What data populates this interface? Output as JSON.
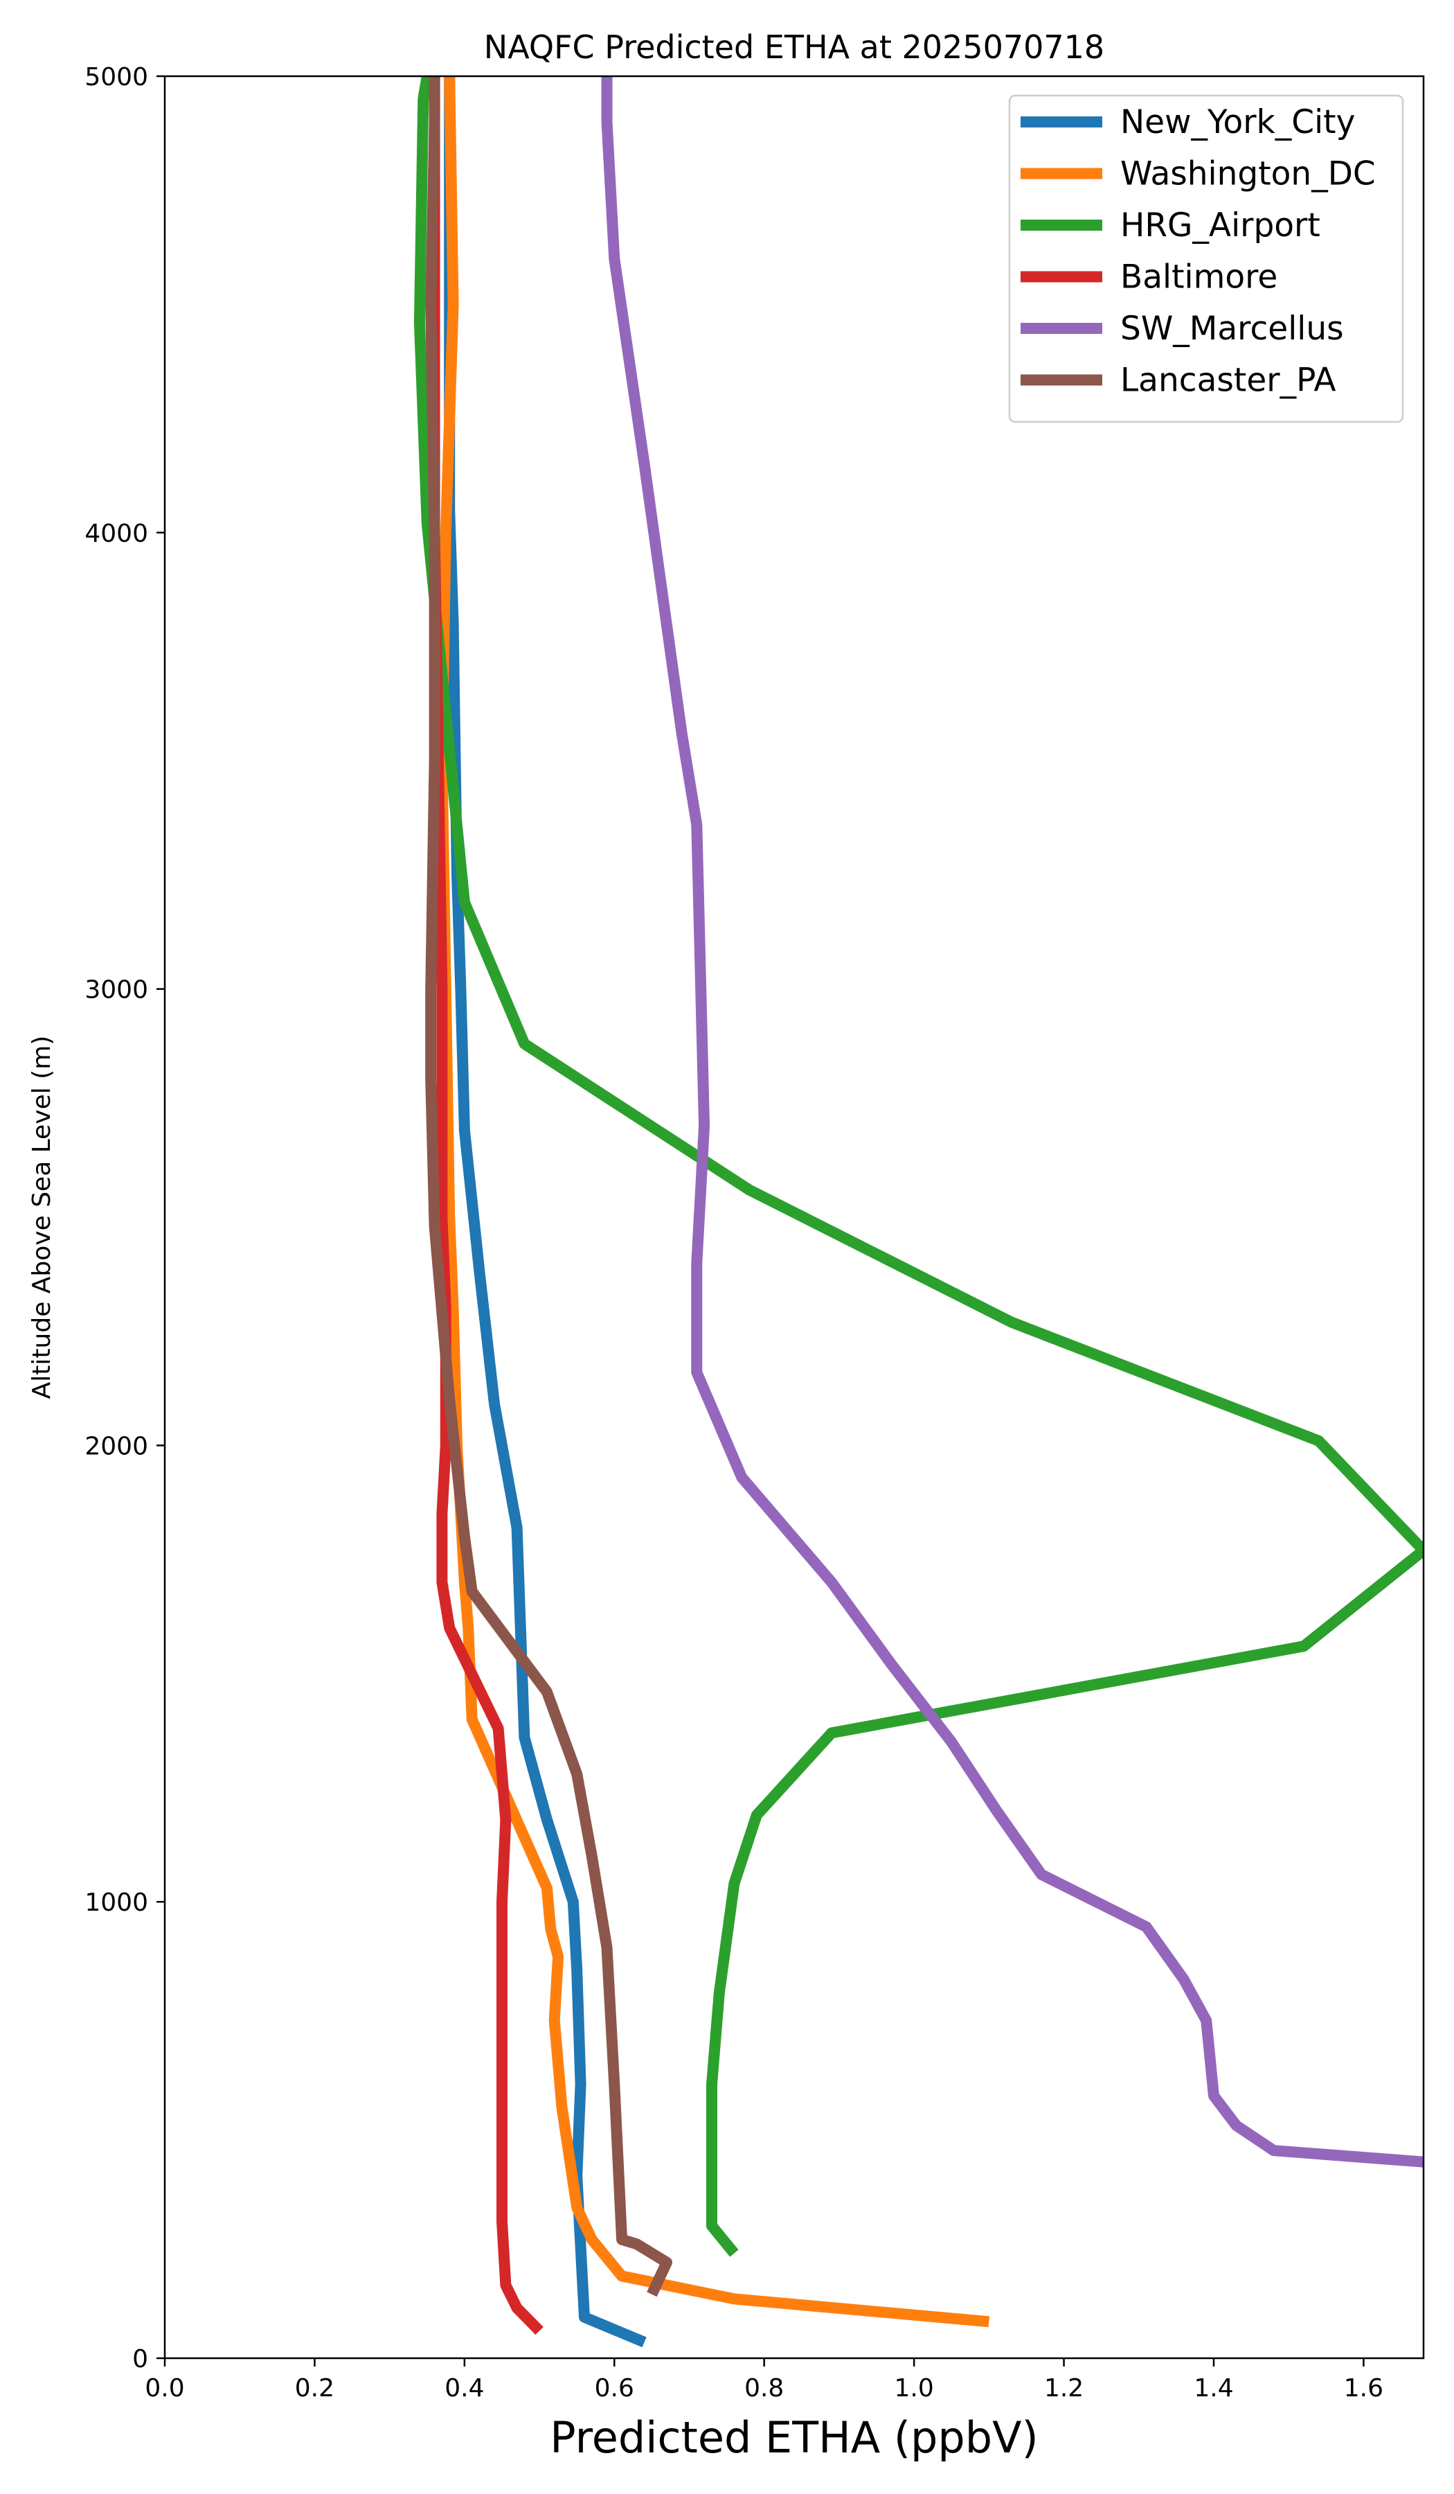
{
  "chart_data": {
    "type": "line",
    "title": "NAQFC Predicted ETHA at 2025070718",
    "xlabel": "Predicted ETHA (ppbV)",
    "ylabel": "Altitude Above Sea Level (m)",
    "xlim": [
      0.0,
      1.68
    ],
    "ylim": [
      0,
      5000
    ],
    "xticks": [
      0.0,
      0.2,
      0.4,
      0.6,
      0.8,
      1.0,
      1.2,
      1.4,
      1.6
    ],
    "xtick_labels": [
      "0.0",
      "0.2",
      "0.4",
      "0.6",
      "0.8",
      "1.0",
      "1.2",
      "1.4",
      "1.6"
    ],
    "yticks": [
      0,
      1000,
      2000,
      3000,
      4000,
      5000
    ],
    "ytick_labels": [
      "0",
      "1000",
      "2000",
      "3000",
      "4000",
      "5000"
    ],
    "grid": false,
    "legend_position": "top-right",
    "series": [
      {
        "name": "New_York_City",
        "color": "#1f77b4",
        "points": [
          [
            0.64,
            35
          ],
          [
            0.56,
            90
          ],
          [
            0.55,
            400
          ],
          [
            0.555,
            600
          ],
          [
            0.55,
            850
          ],
          [
            0.545,
            1000
          ],
          [
            0.51,
            1180
          ],
          [
            0.48,
            1360
          ],
          [
            0.47,
            1820
          ],
          [
            0.44,
            2090
          ],
          [
            0.42,
            2380
          ],
          [
            0.4,
            2690
          ],
          [
            0.395,
            3000
          ],
          [
            0.39,
            3250
          ],
          [
            0.385,
            3800
          ],
          [
            0.38,
            4050
          ],
          [
            0.38,
            5000
          ]
        ]
      },
      {
        "name": "Washington_DC",
        "color": "#ff7f0e",
        "points": [
          [
            1.1,
            80
          ],
          [
            0.76,
            130
          ],
          [
            0.61,
            180
          ],
          [
            0.57,
            260
          ],
          [
            0.55,
            330
          ],
          [
            0.53,
            550
          ],
          [
            0.52,
            740
          ],
          [
            0.525,
            880
          ],
          [
            0.515,
            940
          ],
          [
            0.51,
            1030
          ],
          [
            0.41,
            1400
          ],
          [
            0.405,
            1600
          ],
          [
            0.4,
            1700
          ],
          [
            0.39,
            2000
          ],
          [
            0.385,
            2300
          ],
          [
            0.38,
            2500
          ],
          [
            0.375,
            3000
          ],
          [
            0.37,
            3500
          ],
          [
            0.375,
            4000
          ],
          [
            0.385,
            4500
          ],
          [
            0.38,
            5000
          ]
        ]
      },
      {
        "name": "HRG_Airport",
        "color": "#2ca02c",
        "points": [
          [
            0.76,
            230
          ],
          [
            0.73,
            290
          ],
          [
            0.73,
            400
          ],
          [
            0.73,
            600
          ],
          [
            0.74,
            800
          ],
          [
            0.76,
            1040
          ],
          [
            0.79,
            1190
          ],
          [
            0.89,
            1370
          ],
          [
            1.52,
            1560
          ],
          [
            1.68,
            1770
          ],
          [
            1.54,
            2010
          ],
          [
            1.13,
            2270
          ],
          [
            0.78,
            2560
          ],
          [
            0.48,
            2880
          ],
          [
            0.4,
            3190
          ],
          [
            0.35,
            4020
          ],
          [
            0.34,
            4460
          ],
          [
            0.345,
            4950
          ],
          [
            0.35,
            5000
          ]
        ]
      },
      {
        "name": "Baltimore",
        "color": "#d62728",
        "points": [
          [
            0.5,
            60
          ],
          [
            0.47,
            110
          ],
          [
            0.455,
            160
          ],
          [
            0.45,
            300
          ],
          [
            0.45,
            600
          ],
          [
            0.45,
            1000
          ],
          [
            0.455,
            1180
          ],
          [
            0.445,
            1380
          ],
          [
            0.38,
            1600
          ],
          [
            0.37,
            1700
          ],
          [
            0.37,
            1850
          ],
          [
            0.375,
            2000
          ],
          [
            0.375,
            2300
          ],
          [
            0.37,
            2500
          ],
          [
            0.37,
            3000
          ],
          [
            0.365,
            3500
          ],
          [
            0.36,
            4000
          ],
          [
            0.36,
            4500
          ],
          [
            0.36,
            5000
          ]
        ]
      },
      {
        "name": "SW_Marcellus",
        "color": "#9467bd",
        "points": [
          [
            1.68,
            430
          ],
          [
            1.48,
            455
          ],
          [
            1.43,
            510
          ],
          [
            1.4,
            575
          ],
          [
            1.39,
            740
          ],
          [
            1.36,
            830
          ],
          [
            1.31,
            945
          ],
          [
            1.17,
            1060
          ],
          [
            1.11,
            1200
          ],
          [
            1.05,
            1350
          ],
          [
            0.97,
            1520
          ],
          [
            0.89,
            1700
          ],
          [
            0.77,
            1930
          ],
          [
            0.71,
            2160
          ],
          [
            0.71,
            2400
          ],
          [
            0.72,
            2700
          ],
          [
            0.715,
            3030
          ],
          [
            0.71,
            3360
          ],
          [
            0.69,
            3560
          ],
          [
            0.64,
            4150
          ],
          [
            0.6,
            4600
          ],
          [
            0.59,
            4900
          ],
          [
            0.59,
            5000
          ]
        ]
      },
      {
        "name": "Lancaster_PA",
        "color": "#8c564b",
        "points": [
          [
            0.65,
            140
          ],
          [
            0.67,
            210
          ],
          [
            0.63,
            250
          ],
          [
            0.61,
            260
          ],
          [
            0.6,
            600
          ],
          [
            0.59,
            900
          ],
          [
            0.57,
            1100
          ],
          [
            0.55,
            1280
          ],
          [
            0.51,
            1460
          ],
          [
            0.41,
            1680
          ],
          [
            0.4,
            1800
          ],
          [
            0.38,
            2100
          ],
          [
            0.36,
            2480
          ],
          [
            0.355,
            2800
          ],
          [
            0.355,
            3000
          ],
          [
            0.36,
            3500
          ],
          [
            0.36,
            4000
          ],
          [
            0.355,
            4500
          ],
          [
            0.36,
            4900
          ],
          [
            0.36,
            5000
          ]
        ]
      }
    ]
  }
}
